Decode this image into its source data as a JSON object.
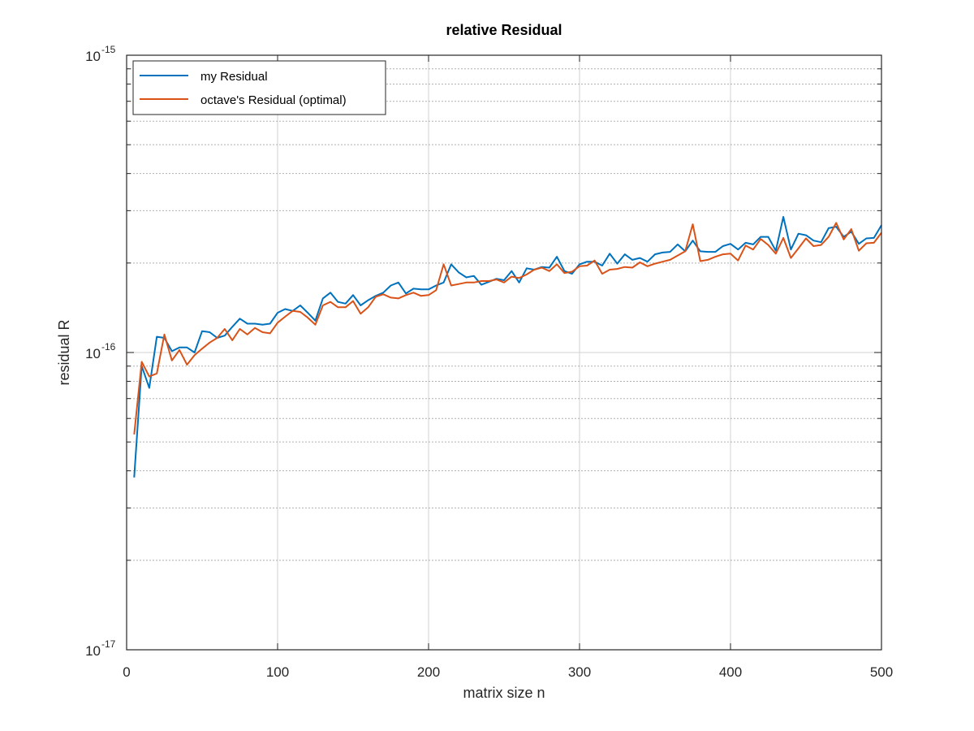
{
  "chart_data": {
    "type": "line",
    "title": "relative Residual",
    "xlabel": "matrix size n",
    "ylabel": "residual R",
    "xlim": [
      0,
      500
    ],
    "ylim": [
      1e-17,
      1e-15
    ],
    "yscale": "log",
    "grid": true,
    "legend_position": "top-left",
    "x_ticks": [
      {
        "value": 0,
        "label": "0"
      },
      {
        "value": 100,
        "label": "100"
      },
      {
        "value": 200,
        "label": "200"
      },
      {
        "value": 300,
        "label": "300"
      },
      {
        "value": 400,
        "label": "400"
      },
      {
        "value": 500,
        "label": "500"
      }
    ],
    "y_ticks": [
      {
        "value": 1e-17,
        "base": "10",
        "exp": "-17"
      },
      {
        "value": 1e-16,
        "base": "10",
        "exp": "-16"
      },
      {
        "value": 1e-15,
        "base": "10",
        "exp": "-15"
      }
    ],
    "x": [
      5,
      10,
      15,
      20,
      25,
      30,
      35,
      40,
      45,
      50,
      55,
      60,
      65,
      70,
      75,
      80,
      85,
      90,
      95,
      100,
      105,
      110,
      115,
      120,
      125,
      130,
      135,
      140,
      145,
      150,
      155,
      160,
      165,
      170,
      175,
      180,
      185,
      190,
      195,
      200,
      205,
      210,
      215,
      220,
      225,
      230,
      235,
      240,
      245,
      250,
      255,
      260,
      265,
      270,
      275,
      280,
      285,
      290,
      295,
      300,
      305,
      310,
      315,
      320,
      325,
      330,
      335,
      340,
      345,
      350,
      355,
      360,
      365,
      370,
      375,
      380,
      385,
      390,
      395,
      400,
      405,
      410,
      415,
      420,
      425,
      430,
      435,
      440,
      445,
      450,
      455,
      460,
      465,
      470,
      475,
      480,
      485,
      490,
      495,
      500
    ],
    "series": [
      {
        "name": "my Residual",
        "color": "#0072BD",
        "values": [
          3.8e-17,
          9e-17,
          7.6e-17,
          1.13e-16,
          1.12e-16,
          1.01e-16,
          1.04e-16,
          1.04e-16,
          1e-16,
          1.18e-16,
          1.17e-16,
          1.12e-16,
          1.14e-16,
          1.22e-16,
          1.3e-16,
          1.25e-16,
          1.25e-16,
          1.24e-16,
          1.25e-16,
          1.36e-16,
          1.4e-16,
          1.38e-16,
          1.44e-16,
          1.36e-16,
          1.28e-16,
          1.52e-16,
          1.59e-16,
          1.48e-16,
          1.46e-16,
          1.56e-16,
          1.44e-16,
          1.5e-16,
          1.55e-16,
          1.59e-16,
          1.68e-16,
          1.72e-16,
          1.58e-16,
          1.64e-16,
          1.63e-16,
          1.63e-16,
          1.68e-16,
          1.72e-16,
          1.98e-16,
          1.86e-16,
          1.79e-16,
          1.81e-16,
          1.69e-16,
          1.73e-16,
          1.77e-16,
          1.75e-16,
          1.88e-16,
          1.72e-16,
          1.92e-16,
          1.9e-16,
          1.94e-16,
          1.93e-16,
          2.1e-16,
          1.88e-16,
          1.84e-16,
          1.98e-16,
          2.02e-16,
          2.02e-16,
          1.96e-16,
          2.15e-16,
          1.99e-16,
          2.14e-16,
          2.05e-16,
          2.08e-16,
          2.02e-16,
          2.14e-16,
          2.17e-16,
          2.18e-16,
          2.31e-16,
          2.19e-16,
          2.38e-16,
          2.19e-16,
          2.18e-16,
          2.18e-16,
          2.28e-16,
          2.32e-16,
          2.22e-16,
          2.34e-16,
          2.31e-16,
          2.45e-16,
          2.45e-16,
          2.2e-16,
          2.86e-16,
          2.22e-16,
          2.51e-16,
          2.48e-16,
          2.38e-16,
          2.35e-16,
          2.62e-16,
          2.65e-16,
          2.45e-16,
          2.55e-16,
          2.32e-16,
          2.42e-16,
          2.43e-16,
          2.68e-16
        ]
      },
      {
        "name": "octave's Residual (optimal)",
        "color": "#D95319",
        "values": [
          5.3e-17,
          9.3e-17,
          8.3e-17,
          8.5e-17,
          1.15e-16,
          9.4e-17,
          1.02e-16,
          9.1e-17,
          9.8e-17,
          1.03e-16,
          1.08e-16,
          1.12e-16,
          1.2e-16,
          1.1e-16,
          1.2e-16,
          1.15e-16,
          1.21e-16,
          1.17e-16,
          1.16e-16,
          1.26e-16,
          1.32e-16,
          1.38e-16,
          1.37e-16,
          1.31e-16,
          1.24e-16,
          1.44e-16,
          1.48e-16,
          1.42e-16,
          1.42e-16,
          1.49e-16,
          1.35e-16,
          1.42e-16,
          1.54e-16,
          1.57e-16,
          1.53e-16,
          1.52e-16,
          1.56e-16,
          1.59e-16,
          1.55e-16,
          1.56e-16,
          1.62e-16,
          1.98e-16,
          1.68e-16,
          1.7e-16,
          1.72e-16,
          1.72e-16,
          1.74e-16,
          1.74e-16,
          1.76e-16,
          1.72e-16,
          1.8e-16,
          1.78e-16,
          1.83e-16,
          1.9e-16,
          1.93e-16,
          1.88e-16,
          1.98e-16,
          1.85e-16,
          1.87e-16,
          1.95e-16,
          1.96e-16,
          2.04e-16,
          1.84e-16,
          1.9e-16,
          1.91e-16,
          1.94e-16,
          1.93e-16,
          2.01e-16,
          1.95e-16,
          1.99e-16,
          2.02e-16,
          2.05e-16,
          2.12e-16,
          2.19e-16,
          2.7e-16,
          2.03e-16,
          2.05e-16,
          2.1e-16,
          2.14e-16,
          2.15e-16,
          2.04e-16,
          2.29e-16,
          2.22e-16,
          2.41e-16,
          2.3e-16,
          2.15e-16,
          2.43e-16,
          2.08e-16,
          2.24e-16,
          2.42e-16,
          2.28e-16,
          2.3e-16,
          2.45e-16,
          2.73e-16,
          2.4e-16,
          2.6e-16,
          2.2e-16,
          2.33e-16,
          2.34e-16,
          2.53e-16
        ]
      }
    ]
  }
}
